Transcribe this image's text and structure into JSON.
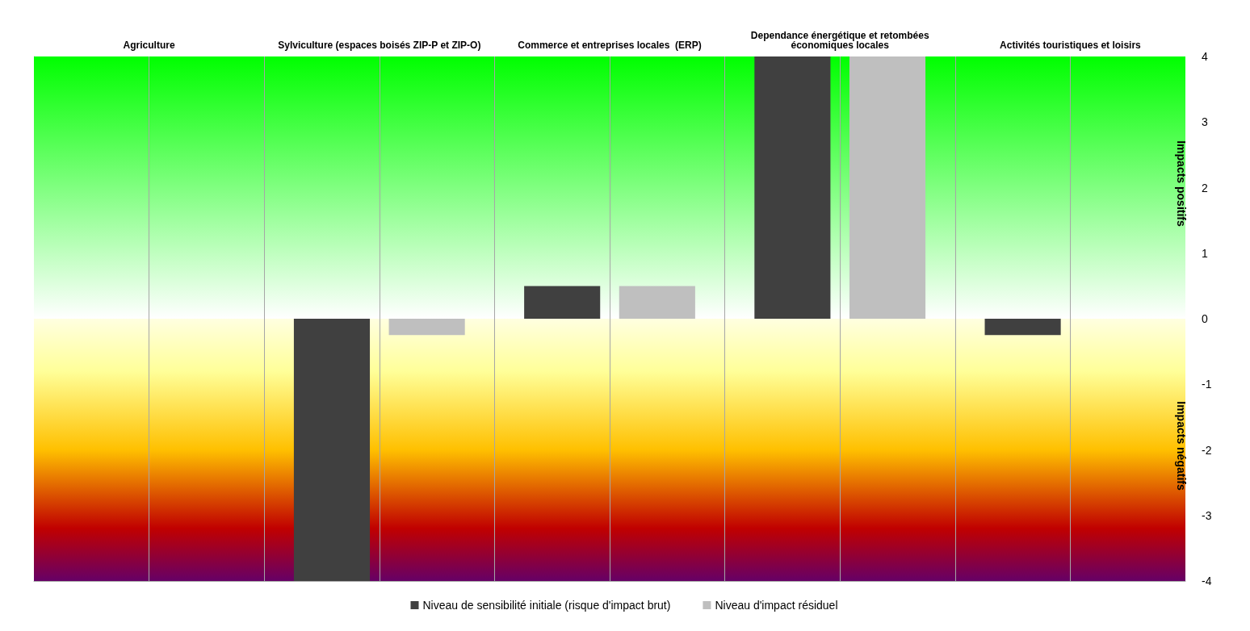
{
  "chart_data": {
    "type": "bar",
    "categories": [
      "Agriculture",
      "Sylviculture (espaces boisés ZIP-P et ZIP-O)",
      "Commerce et entreprises locales  (ERP)",
      "Dependance énergétique et retombées\néconomiques locales",
      "Activités touristiques et loisirs"
    ],
    "series": [
      {
        "name": "Niveau de sensibilité initiale (risque d'impact brut)",
        "color": "#404040",
        "values": [
          0,
          -4,
          0.5,
          4,
          -0.25
        ]
      },
      {
        "name": "Niveau d'impact résiduel",
        "color": "#bfbfbf",
        "values": [
          0,
          -0.25,
          0.5,
          4,
          0
        ]
      }
    ],
    "ylim": [
      -4,
      4
    ],
    "yticks": [
      -4,
      -3,
      -2,
      -1,
      0,
      1,
      2,
      3,
      4
    ],
    "bands": [
      {
        "axis": "y",
        "from": 0,
        "to": 4,
        "label": "Impacts positifs"
      },
      {
        "axis": "y",
        "from": -4,
        "to": 0,
        "label": "Impacts négatifs"
      }
    ],
    "grid": "x",
    "legend": "bottom"
  }
}
